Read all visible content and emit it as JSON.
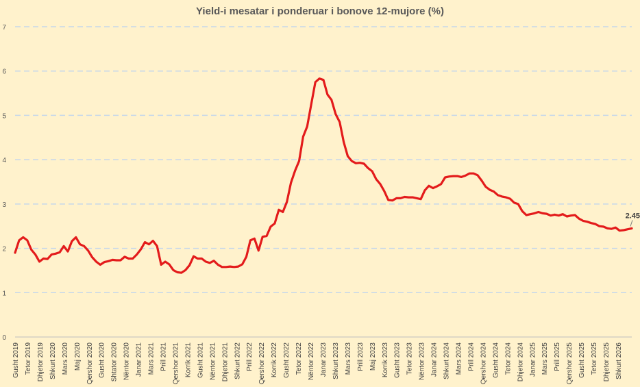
{
  "colors": {
    "background": "#FFF2CC",
    "series": "#E31B1B",
    "grid": "#C5D7EA",
    "text": "#595959"
  },
  "chart_data": {
    "type": "line",
    "title": "Yield-i mesatar i ponderuar i bonove 12-mujore (%)",
    "xlabel": "",
    "ylabel": "",
    "ylim": [
      0,
      7
    ],
    "yticks": [
      "0",
      "1",
      "2",
      "3",
      "4",
      "5",
      "6",
      "7"
    ],
    "grid": "horizontal-dashed",
    "legend": "none",
    "x_tick_labels": [
      "Gusht 2019",
      "Tetor 2019",
      "Dhjetor 2019",
      "Shkurt 2020",
      "Mars 2020",
      "Maj 2020",
      "Qershor 2020",
      "Gusht 2020",
      "Shtator 2020",
      "Nëntor 2020",
      "Janar 2021",
      "Mars 2021",
      "Prill 2021",
      "Qershor 2021",
      "Korrik 2021",
      "Gusht 2021",
      "Nëntor 2021",
      "Dhjetor 2021",
      "Shkurt 2022",
      "Prill 2022",
      "Qershor 2022",
      "Korrik 2022",
      "Gusht 2022",
      "Tetor 2022",
      "Nëntor 2022",
      "Janar 2023",
      "Shkurt 2023",
      "Mars 2023",
      "Prill 2023",
      "Maj 2023",
      "Korrik 2023",
      "Gusht 2023",
      "Tetor 2023",
      "Nëntor 2023",
      "Janar 2024",
      "Shkurt 2024",
      "Mars 2024",
      "Prill 2024",
      "Qershor 2024",
      "Gusht 2024",
      "Tetor 2024",
      "Dhjetor 2024",
      "Janar 2025",
      "Mars 2025",
      "Prill 2025",
      "Qershor 2025",
      "Gusht 2025",
      "Tetor 2025",
      "Dhjetor 2025",
      "Shkurt 2026"
    ],
    "series": [
      {
        "values": [
          1.9,
          2.18,
          2.25,
          2.18,
          1.97,
          1.86,
          1.7,
          1.77,
          1.76,
          1.86,
          1.88,
          1.91,
          2.05,
          1.93,
          2.16,
          2.25,
          2.09,
          2.05,
          1.95,
          1.8,
          1.7,
          1.63,
          1.69,
          1.71,
          1.74,
          1.73,
          1.73,
          1.81,
          1.77,
          1.77,
          1.86,
          1.98,
          2.14,
          2.09,
          2.17,
          2.05,
          1.63,
          1.7,
          1.64,
          1.51,
          1.46,
          1.45,
          1.51,
          1.62,
          1.82,
          1.77,
          1.77,
          1.7,
          1.67,
          1.72,
          1.63,
          1.58,
          1.58,
          1.59,
          1.58,
          1.59,
          1.64,
          1.81,
          2.18,
          2.22,
          1.95,
          2.26,
          2.28,
          2.49,
          2.56,
          2.87,
          2.82,
          3.05,
          3.48,
          3.75,
          3.97,
          4.52,
          4.75,
          5.25,
          5.75,
          5.83,
          5.8,
          5.47,
          5.35,
          5.03,
          4.85,
          4.4,
          4.08,
          3.97,
          3.92,
          3.93,
          3.91,
          3.81,
          3.74,
          3.56,
          3.45,
          3.29,
          3.09,
          3.08,
          3.13,
          3.13,
          3.16,
          3.15,
          3.15,
          3.13,
          3.11,
          3.31,
          3.41,
          3.36,
          3.4,
          3.45,
          3.6,
          3.62,
          3.63,
          3.63,
          3.61,
          3.64,
          3.69,
          3.69,
          3.65,
          3.53,
          3.39,
          3.32,
          3.28,
          3.2,
          3.17,
          3.15,
          3.12,
          3.03,
          3.0,
          2.84,
          2.75,
          2.77,
          2.79,
          2.82,
          2.79,
          2.78,
          2.74,
          2.76,
          2.74,
          2.77,
          2.72,
          2.74,
          2.75,
          2.67,
          2.62,
          2.6,
          2.57,
          2.55,
          2.5,
          2.49,
          2.45,
          2.44,
          2.47,
          2.4,
          2.41,
          2.43,
          2.45
        ]
      }
    ],
    "data_labels": [
      {
        "point": "last",
        "text": "2.45"
      }
    ]
  }
}
